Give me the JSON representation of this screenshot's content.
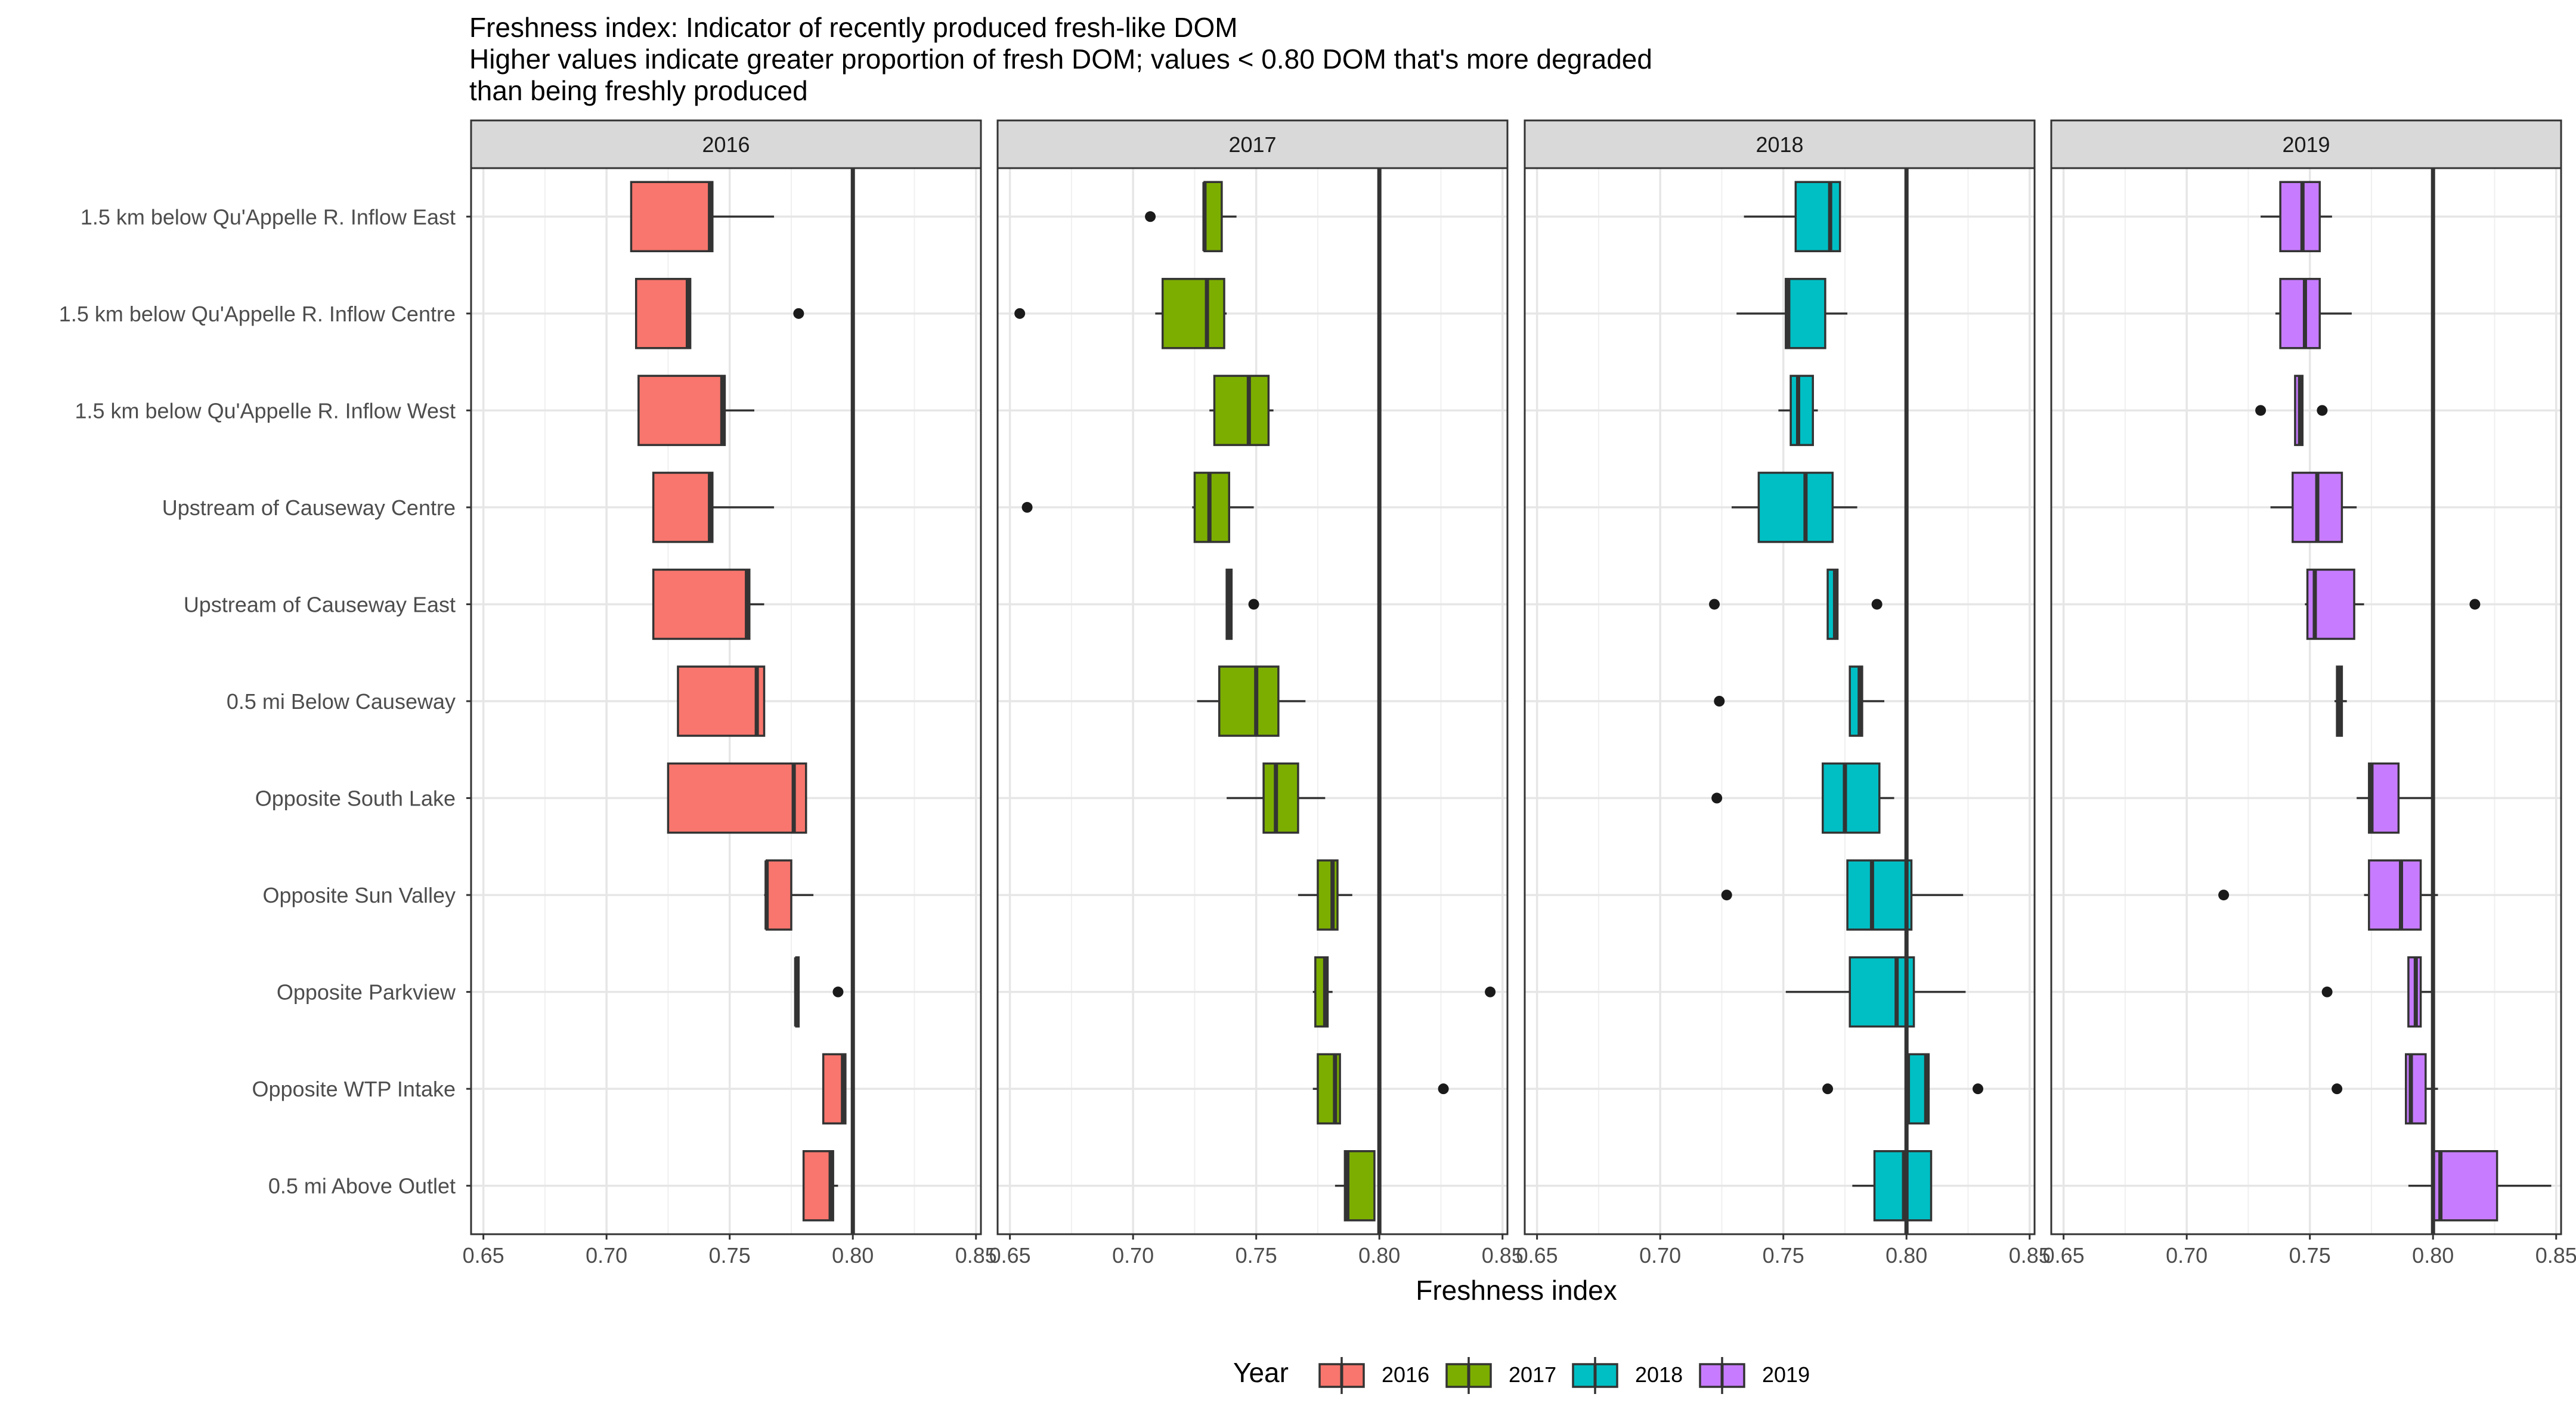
{
  "chart_data": {
    "type": "boxplot",
    "title_lines": [
      "Freshness index: Indicator of recently produced fresh-like DOM",
      "Higher values indicate greater proportion of fresh DOM; values < 0.80 DOM that's more degraded",
      "than being freshly produced"
    ],
    "xlabel": "Freshness index",
    "ylabel": "",
    "xlim": [
      0.645,
      0.852
    ],
    "x_ticks": [
      0.65,
      0.7,
      0.75,
      0.8,
      0.85
    ],
    "x_tick_labels": [
      "0.65",
      "0.70",
      "0.75",
      "0.80",
      "0.85"
    ],
    "reference_line": 0.8,
    "grid": true,
    "legend": {
      "title": "Year",
      "position": "bottom",
      "items": [
        "2016",
        "2017",
        "2018",
        "2019"
      ]
    },
    "colors": {
      "2016": "#F8766D",
      "2017": "#7CAE00",
      "2018": "#00BFC4",
      "2019": "#C77CFF"
    },
    "categories": [
      "1.5 km below Qu'Appelle R. Inflow East",
      "1.5 km below Qu'Appelle R. Inflow Centre",
      "1.5 km below Qu'Appelle R. Inflow West",
      "Upstream of Causeway Centre",
      "Upstream of Causeway East",
      "0.5 mi Below Causeway",
      "Opposite South Lake",
      "Opposite Sun Valley",
      "Opposite Parkview",
      "Opposite WTP Intake",
      "0.5 mi Above Outlet"
    ],
    "panels": [
      {
        "year": "2016",
        "boxes": [
          {
            "min": 0.71,
            "q1": 0.71,
            "median": 0.742,
            "q3": 0.743,
            "max": 0.768,
            "outliers": []
          },
          {
            "min": 0.712,
            "q1": 0.712,
            "median": 0.733,
            "q3": 0.734,
            "max": 0.734,
            "outliers": [
              0.778
            ]
          },
          {
            "min": 0.713,
            "q1": 0.713,
            "median": 0.747,
            "q3": 0.748,
            "max": 0.76,
            "outliers": []
          },
          {
            "min": 0.719,
            "q1": 0.719,
            "median": 0.742,
            "q3": 0.743,
            "max": 0.768,
            "outliers": []
          },
          {
            "min": 0.719,
            "q1": 0.719,
            "median": 0.757,
            "q3": 0.758,
            "max": 0.764,
            "outliers": []
          },
          {
            "min": 0.729,
            "q1": 0.729,
            "median": 0.761,
            "q3": 0.764,
            "max": 0.764,
            "outliers": []
          },
          {
            "min": 0.725,
            "q1": 0.725,
            "median": 0.776,
            "q3": 0.781,
            "max": 0.781,
            "outliers": []
          },
          {
            "min": 0.764,
            "q1": 0.765,
            "median": 0.765,
            "q3": 0.775,
            "max": 0.784,
            "outliers": []
          },
          {
            "min": 0.777,
            "q1": 0.777,
            "median": 0.777,
            "q3": 0.778,
            "max": 0.778,
            "outliers": [
              0.794
            ]
          },
          {
            "min": 0.788,
            "q1": 0.788,
            "median": 0.796,
            "q3": 0.797,
            "max": 0.797,
            "outliers": []
          },
          {
            "min": 0.78,
            "q1": 0.78,
            "median": 0.791,
            "q3": 0.792,
            "max": 0.794,
            "outliers": []
          }
        ]
      },
      {
        "year": "2017",
        "boxes": [
          {
            "min": 0.729,
            "q1": 0.729,
            "median": 0.729,
            "q3": 0.736,
            "max": 0.742,
            "outliers": [
              0.707
            ]
          },
          {
            "min": 0.709,
            "q1": 0.712,
            "median": 0.73,
            "q3": 0.737,
            "max": 0.738,
            "outliers": [
              0.654
            ]
          },
          {
            "min": 0.731,
            "q1": 0.733,
            "median": 0.747,
            "q3": 0.755,
            "max": 0.757,
            "outliers": []
          },
          {
            "min": 0.724,
            "q1": 0.725,
            "median": 0.731,
            "q3": 0.739,
            "max": 0.749,
            "outliers": [
              0.657
            ]
          },
          {
            "min": 0.738,
            "q1": 0.738,
            "median": 0.739,
            "q3": 0.74,
            "max": 0.74,
            "outliers": [
              0.749
            ]
          },
          {
            "min": 0.726,
            "q1": 0.735,
            "median": 0.75,
            "q3": 0.759,
            "max": 0.77,
            "outliers": []
          },
          {
            "min": 0.738,
            "q1": 0.753,
            "median": 0.758,
            "q3": 0.767,
            "max": 0.778,
            "outliers": []
          },
          {
            "min": 0.767,
            "q1": 0.775,
            "median": 0.781,
            "q3": 0.783,
            "max": 0.789,
            "outliers": []
          },
          {
            "min": 0.773,
            "q1": 0.774,
            "median": 0.778,
            "q3": 0.779,
            "max": 0.781,
            "outliers": [
              0.845
            ]
          },
          {
            "min": 0.773,
            "q1": 0.775,
            "median": 0.782,
            "q3": 0.784,
            "max": 0.784,
            "outliers": [
              0.826
            ]
          },
          {
            "min": 0.782,
            "q1": 0.786,
            "median": 0.787,
            "q3": 0.798,
            "max": 0.798,
            "outliers": []
          }
        ]
      },
      {
        "year": "2018",
        "boxes": [
          {
            "min": 0.734,
            "q1": 0.755,
            "median": 0.769,
            "q3": 0.773,
            "max": 0.773,
            "outliers": []
          },
          {
            "min": 0.731,
            "q1": 0.751,
            "median": 0.752,
            "q3": 0.767,
            "max": 0.776,
            "outliers": []
          },
          {
            "min": 0.748,
            "q1": 0.753,
            "median": 0.756,
            "q3": 0.762,
            "max": 0.764,
            "outliers": []
          },
          {
            "min": 0.729,
            "q1": 0.74,
            "median": 0.759,
            "q3": 0.77,
            "max": 0.78,
            "outliers": []
          },
          {
            "min": 0.768,
            "q1": 0.768,
            "median": 0.771,
            "q3": 0.772,
            "max": 0.772,
            "outliers": [
              0.722,
              0.788
            ]
          },
          {
            "min": 0.777,
            "q1": 0.777,
            "median": 0.781,
            "q3": 0.782,
            "max": 0.791,
            "outliers": [
              0.724
            ]
          },
          {
            "min": 0.766,
            "q1": 0.766,
            "median": 0.775,
            "q3": 0.789,
            "max": 0.795,
            "outliers": [
              0.723
            ]
          },
          {
            "min": 0.776,
            "q1": 0.776,
            "median": 0.786,
            "q3": 0.802,
            "max": 0.823,
            "outliers": [
              0.727
            ]
          },
          {
            "min": 0.751,
            "q1": 0.777,
            "median": 0.796,
            "q3": 0.803,
            "max": 0.824,
            "outliers": []
          },
          {
            "min": 0.801,
            "q1": 0.801,
            "median": 0.808,
            "q3": 0.809,
            "max": 0.809,
            "outliers": [
              0.768,
              0.829
            ]
          },
          {
            "min": 0.778,
            "q1": 0.787,
            "median": 0.799,
            "q3": 0.81,
            "max": 0.81,
            "outliers": []
          }
        ]
      },
      {
        "year": "2019",
        "boxes": [
          {
            "min": 0.73,
            "q1": 0.738,
            "median": 0.747,
            "q3": 0.754,
            "max": 0.759,
            "outliers": []
          },
          {
            "min": 0.736,
            "q1": 0.738,
            "median": 0.748,
            "q3": 0.754,
            "max": 0.767,
            "outliers": []
          },
          {
            "min": 0.744,
            "q1": 0.744,
            "median": 0.746,
            "q3": 0.747,
            "max": 0.747,
            "outliers": [
              0.73,
              0.755
            ]
          },
          {
            "min": 0.734,
            "q1": 0.743,
            "median": 0.753,
            "q3": 0.763,
            "max": 0.769,
            "outliers": []
          },
          {
            "min": 0.748,
            "q1": 0.749,
            "median": 0.752,
            "q3": 0.768,
            "max": 0.772,
            "outliers": [
              0.817
            ]
          },
          {
            "min": 0.76,
            "q1": 0.761,
            "median": 0.762,
            "q3": 0.763,
            "max": 0.765,
            "outliers": []
          },
          {
            "min": 0.769,
            "q1": 0.774,
            "median": 0.775,
            "q3": 0.786,
            "max": 0.8,
            "outliers": []
          },
          {
            "min": 0.772,
            "q1": 0.774,
            "median": 0.787,
            "q3": 0.795,
            "max": 0.802,
            "outliers": [
              0.715
            ]
          },
          {
            "min": 0.79,
            "q1": 0.79,
            "median": 0.793,
            "q3": 0.795,
            "max": 0.8,
            "outliers": [
              0.757
            ]
          },
          {
            "min": 0.789,
            "q1": 0.789,
            "median": 0.791,
            "q3": 0.797,
            "max": 0.802,
            "outliers": [
              0.761
            ]
          },
          {
            "min": 0.79,
            "q1": 0.8,
            "median": 0.803,
            "q3": 0.826,
            "max": 0.848,
            "outliers": []
          }
        ]
      }
    ]
  }
}
